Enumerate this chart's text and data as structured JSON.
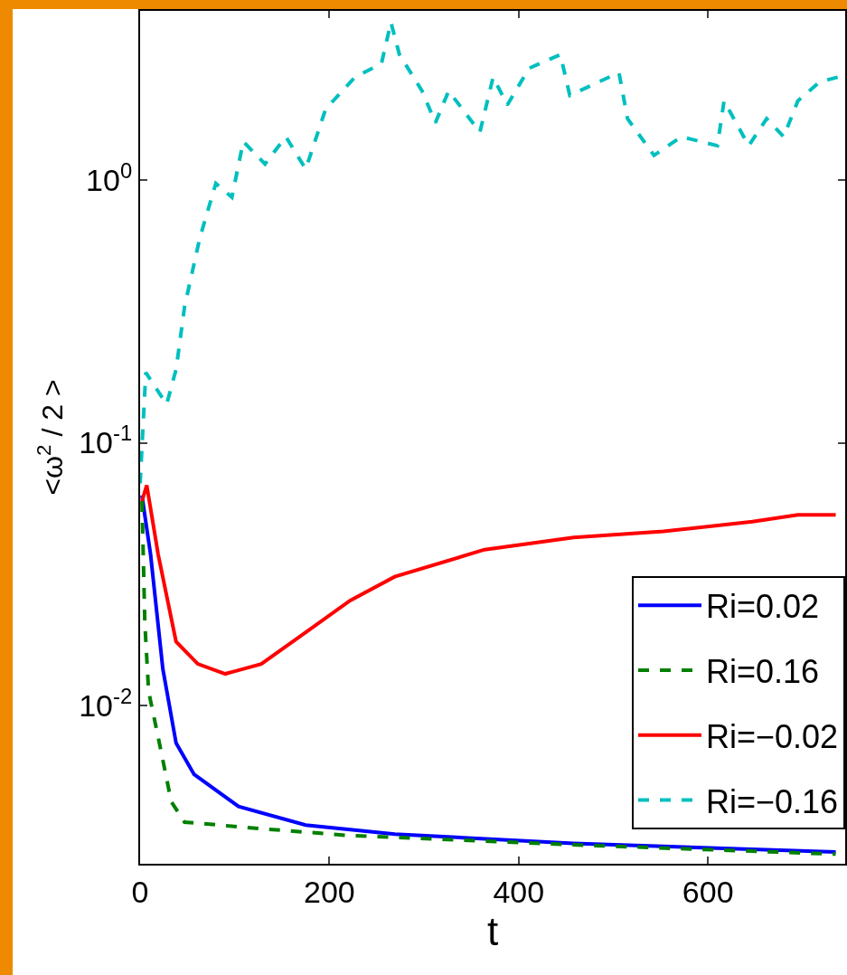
{
  "chart_data": {
    "type": "line",
    "xlabel": "t",
    "ylabel": "<ω$^{2}$ / 2 >",
    "log": "y",
    "grid": false,
    "legend": "bottom right",
    "xlim": [
      0,
      745
    ],
    "ylim": [
      0.0025,
      4.4
    ],
    "xticks": [
      0,
      200,
      400,
      600
    ],
    "yticks": [
      {
        "value": 0.01,
        "label": "10$^{-2}$"
      },
      {
        "value": 0.1,
        "label": "10$^{-1}$"
      },
      {
        "value": 1,
        "label": "10$^{0}$"
      }
    ],
    "series": [
      {
        "name": "Ri=0.02",
        "color": "#0000ff",
        "line_style": "solid",
        "x": [
          2,
          4,
          11,
          24,
          38,
          57,
          104,
          175,
          269,
          458,
          735
        ],
        "values": [
          0.063,
          0.056,
          0.0377,
          0.0138,
          0.0072,
          0.00547,
          0.00413,
          0.00351,
          0.00324,
          0.00299,
          0.00277
        ]
      },
      {
        "name": "Ri=0.16",
        "color": "#008000",
        "line_style": "dashed",
        "x": [
          2,
          5,
          9,
          19,
          33,
          47,
          128,
          222,
          458,
          735
        ],
        "values": [
          0.06,
          0.0206,
          0.0113,
          0.0076,
          0.0043,
          0.0036,
          0.0034,
          0.0032,
          0.00295,
          0.00272
        ]
      },
      {
        "name": "Ri=−0.02",
        "color": "#ff0000",
        "line_style": "solid",
        "x": [
          2,
          7,
          19,
          38,
          61,
          90,
          128,
          175,
          222,
          269,
          364,
          458,
          553,
          647,
          695,
          735
        ],
        "values": [
          0.06,
          0.0689,
          0.0377,
          0.0175,
          0.0144,
          0.0132,
          0.0144,
          0.019,
          0.0251,
          0.0309,
          0.0392,
          0.0436,
          0.046,
          0.0501,
          0.0532,
          0.0532
        ]
      },
      {
        "name": "Ri=−0.16",
        "color": "#00bfbf",
        "line_style": "dashed",
        "x": [
          0,
          6,
          28,
          38,
          47,
          63,
          80,
          97,
          109,
          132,
          154,
          175,
          196,
          227,
          255,
          265,
          274,
          298,
          312,
          326,
          359,
          373,
          388,
          411,
          444,
          454,
          506,
          515,
          543,
          572,
          610,
          617,
          643,
          662,
          680,
          695,
          718,
          737
        ],
        "values": [
          0.07,
          0.185,
          0.14,
          0.19,
          0.33,
          0.6,
          0.97,
          0.86,
          1.4,
          1.15,
          1.46,
          1.1,
          1.86,
          2.46,
          2.77,
          3.98,
          3.0,
          2.18,
          1.65,
          2.18,
          1.52,
          2.46,
          1.93,
          2.66,
          3.0,
          2.1,
          2.56,
          1.71,
          1.24,
          1.46,
          1.35,
          2.0,
          1.35,
          1.71,
          1.46,
          2.0,
          2.36,
          2.46
        ]
      }
    ]
  }
}
